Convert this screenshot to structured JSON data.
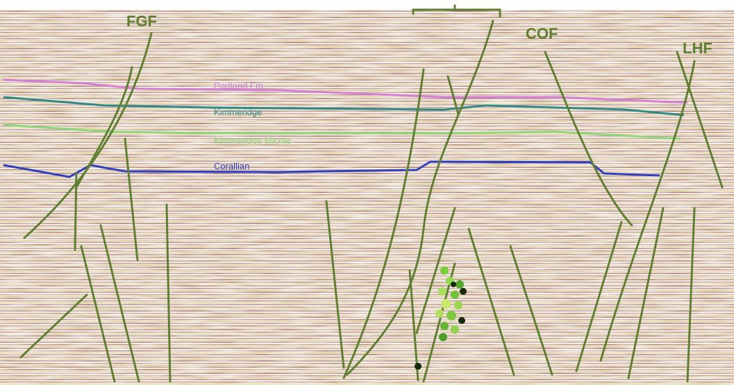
{
  "faults": [
    {
      "label": "FGF"
    },
    {
      "label": "COF"
    },
    {
      "label": "LHF"
    }
  ],
  "horizons": [
    {
      "label": "Portland Fm."
    },
    {
      "label": "Kimmeridge"
    },
    {
      "label": "Kimmeridge Micrite"
    },
    {
      "label": "Corallian"
    }
  ]
}
